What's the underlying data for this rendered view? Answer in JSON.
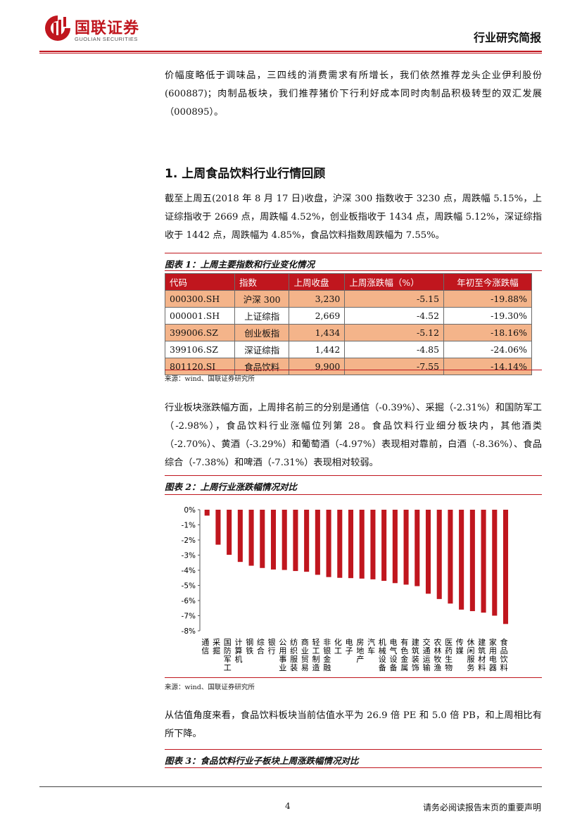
{
  "header": {
    "logo_cn": "国联证券",
    "logo_en": "GUOLIAN SECURITIES",
    "report_type": "行业研究简报"
  },
  "intro_paragraph": "价幅度略低于调味品，三四线的消费需求有所增长，我们依然推荐龙头企业伊利股份(600887)；肉制品板块，我们推荐猪价下行利好成本同时肉制品积极转型的双汇发展（000895）。",
  "section": {
    "title": "1. 上周食品饮料行业行情回顾",
    "paragraph": "截至上周五(2018 年 8 月 17 日)收盘，沪深 300 指数收于 3230 点，周跌幅 5.15%，上证综指收于 2669 点，周跌幅 4.52%，创业板指收于 1434 点，周跌幅 5.12%，深证综指收于 1442 点，周跌幅为 4.85%，食品饮料指数周跌幅为 7.55%。"
  },
  "figure1": {
    "caption": "图表 1：上周主要指数和行业变化情况",
    "headers": [
      "代码",
      "指数",
      "上周收盘",
      "上周涨跌幅（%）",
      "年初至今涨跌幅"
    ],
    "rows": [
      {
        "code": "000300.SH",
        "name": "沪深 300",
        "close": "3,230",
        "weekly": "-5.15",
        "ytd": "-19.88%"
      },
      {
        "code": "000001.SH",
        "name": "上证综指",
        "close": "2,669",
        "weekly": "-4.52",
        "ytd": "-19.30%"
      },
      {
        "code": "399006.SZ",
        "name": "创业板指",
        "close": "1,434",
        "weekly": "-5.12",
        "ytd": "-18.16%"
      },
      {
        "code": "399106.SZ",
        "name": "深证综指",
        "close": "1,442",
        "weekly": "-4.85",
        "ytd": "-24.06%"
      },
      {
        "code": "801120.SI",
        "name": "食品饮料",
        "close": "9,900",
        "weekly": "-7.55",
        "ytd": "-14.14%"
      }
    ],
    "source": "来源：wind、国联证券研究所"
  },
  "paragraph2": "行业板块涨跌幅方面，上周排名前三的分别是通信（-0.39%）、采掘（-2.31%）和国防军工（-2.98%），食品饮料行业涨幅位列第 28。食品饮料行业细分板块内，其他酒类（-2.70%）、黄酒（-3.29%）和葡萄酒（-4.97%）表现相对靠前，白酒（-8.36%）、食品综合（-7.38%）和啤酒（-7.31%）表现相对较弱。",
  "figure2": {
    "caption": "图表 2：上周行业涨跌幅情况对比",
    "source": "来源：wind、国联证券研究所"
  },
  "chart_data": {
    "type": "bar",
    "categories": [
      "通信",
      "采掘",
      "国防军工",
      "计算机",
      "钢铁",
      "综合",
      "银行",
      "公用事业",
      "纺织服装",
      "商业贸易",
      "轻工制造",
      "非银金融",
      "化工",
      "电子",
      "房地产",
      "汽车",
      "机械设备",
      "电气设备",
      "有色金属",
      "建筑装饰",
      "交通运输",
      "农林牧渔",
      "医药生物",
      "传媒",
      "休闲服务",
      "建筑材料",
      "家用电器",
      "食品饮料"
    ],
    "values": [
      -0.39,
      -2.31,
      -2.98,
      -3.45,
      -3.7,
      -3.85,
      -3.95,
      -3.98,
      -4.05,
      -4.1,
      -4.3,
      -4.45,
      -4.5,
      -4.52,
      -4.55,
      -4.6,
      -4.7,
      -4.85,
      -4.95,
      -5.05,
      -5.55,
      -5.9,
      -6.2,
      -6.6,
      -6.7,
      -6.8,
      -7.0,
      -7.55
    ],
    "yticks": [
      "0%",
      "-1%",
      "-2%",
      "-3%",
      "-4%",
      "-5%",
      "-6%",
      "-7%",
      "-8%"
    ],
    "ylim": [
      -8,
      0
    ],
    "bar_color": "#c0161e"
  },
  "paragraph3": "从估值角度来看，食品饮料板块当前估值水平为 26.9 倍 PE 和 5.0 倍 PB，和上周相比有所下降。",
  "figure3": {
    "caption": "图表 3：食品饮料行业子板块上周涨跌幅情况对比"
  },
  "footer": {
    "page": "4",
    "disclaimer": "请务必阅读报告末页的重要声明"
  }
}
